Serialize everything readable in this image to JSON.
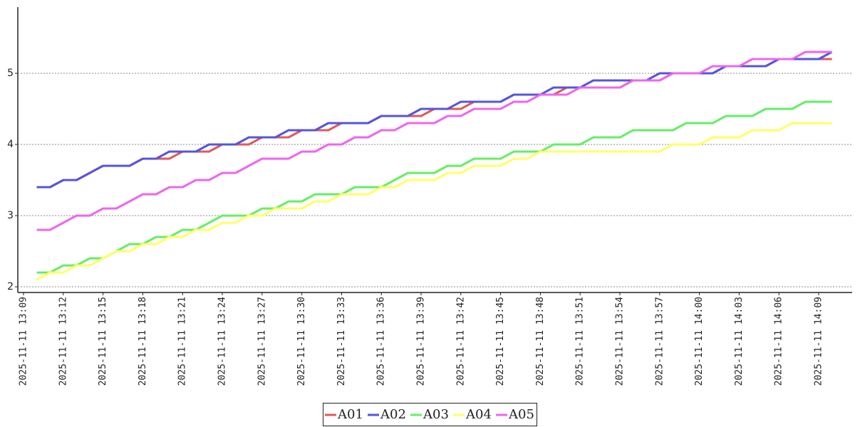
{
  "chart_data": {
    "type": "line",
    "categories": [
      "2025-11-11 13:09",
      null,
      null,
      "2025-11-11 13:12",
      null,
      null,
      "2025-11-11 13:15",
      null,
      null,
      "2025-11-11 13:18",
      null,
      null,
      "2025-11-11 13:21",
      null,
      null,
      "2025-11-11 13:24",
      null,
      null,
      "2025-11-11 13:27",
      null,
      null,
      "2025-11-11 13:30",
      null,
      null,
      "2025-11-11 13:33",
      null,
      null,
      "2025-11-11 13:36",
      null,
      null,
      "2025-11-11 13:39",
      null,
      null,
      "2025-11-11 13:42",
      null,
      null,
      "2025-11-11 13:45",
      null,
      null,
      "2025-11-11 13:48",
      null,
      null,
      "2025-11-11 13:51",
      null,
      null,
      "2025-11-11 13:54",
      null,
      null,
      "2025-11-11 13:57",
      null,
      null,
      "2025-11-11 14:00",
      null,
      null,
      "2025-11-11 14:03",
      null,
      null,
      "2025-11-11 14:06",
      null,
      null,
      "2025-11-11 14:09",
      null
    ],
    "series": [
      {
        "name": "A01",
        "color": "#e05a5a",
        "values": [
          null,
          3.4,
          3.4,
          3.5,
          3.5,
          3.6,
          3.7,
          3.7,
          3.7,
          3.8,
          3.8,
          3.8,
          3.9,
          3.9,
          3.9,
          4.0,
          4.0,
          4.0,
          4.1,
          4.1,
          4.1,
          4.2,
          4.2,
          4.2,
          4.3,
          4.3,
          4.3,
          4.4,
          4.4,
          4.4,
          4.4,
          4.5,
          4.5,
          4.5,
          4.6,
          4.6,
          4.6,
          4.7,
          4.7,
          4.7,
          4.7,
          4.8,
          4.8,
          4.8,
          4.8,
          4.8,
          4.9,
          4.9,
          4.9,
          5.0,
          5.0,
          5.0,
          5.0,
          5.1,
          5.1,
          5.1,
          5.1,
          5.2,
          5.2,
          5.2,
          5.2,
          5.2
        ]
      },
      {
        "name": "A02",
        "color": "#5555dd",
        "values": [
          null,
          3.4,
          3.4,
          3.5,
          3.5,
          3.6,
          3.7,
          3.7,
          3.7,
          3.8,
          3.8,
          3.9,
          3.9,
          3.9,
          4.0,
          4.0,
          4.0,
          4.1,
          4.1,
          4.1,
          4.2,
          4.2,
          4.2,
          4.3,
          4.3,
          4.3,
          4.3,
          4.4,
          4.4,
          4.4,
          4.5,
          4.5,
          4.5,
          4.6,
          4.6,
          4.6,
          4.6,
          4.7,
          4.7,
          4.7,
          4.8,
          4.8,
          4.8,
          4.9,
          4.9,
          4.9,
          4.9,
          4.9,
          5.0,
          5.0,
          5.0,
          5.0,
          5.0,
          5.1,
          5.1,
          5.1,
          5.1,
          5.2,
          5.2,
          5.2,
          5.2,
          5.3
        ]
      },
      {
        "name": "A03",
        "color": "#66ee66",
        "values": [
          null,
          2.2,
          2.2,
          2.3,
          2.3,
          2.4,
          2.4,
          2.5,
          2.6,
          2.6,
          2.7,
          2.7,
          2.8,
          2.8,
          2.9,
          3.0,
          3.0,
          3.0,
          3.1,
          3.1,
          3.2,
          3.2,
          3.3,
          3.3,
          3.3,
          3.4,
          3.4,
          3.4,
          3.5,
          3.6,
          3.6,
          3.6,
          3.7,
          3.7,
          3.8,
          3.8,
          3.8,
          3.9,
          3.9,
          3.9,
          4.0,
          4.0,
          4.0,
          4.1,
          4.1,
          4.1,
          4.2,
          4.2,
          4.2,
          4.2,
          4.3,
          4.3,
          4.3,
          4.4,
          4.4,
          4.4,
          4.5,
          4.5,
          4.5,
          4.6,
          4.6,
          4.6
        ]
      },
      {
        "name": "A04",
        "color": "#ffff66",
        "values": [
          null,
          2.1,
          2.2,
          2.2,
          2.3,
          2.3,
          2.4,
          2.5,
          2.5,
          2.6,
          2.6,
          2.7,
          2.7,
          2.8,
          2.8,
          2.9,
          2.9,
          3.0,
          3.0,
          3.1,
          3.1,
          3.1,
          3.2,
          3.2,
          3.3,
          3.3,
          3.3,
          3.4,
          3.4,
          3.5,
          3.5,
          3.5,
          3.6,
          3.6,
          3.7,
          3.7,
          3.7,
          3.8,
          3.8,
          3.9,
          3.9,
          3.9,
          3.9,
          3.9,
          3.9,
          3.9,
          3.9,
          3.9,
          3.9,
          4.0,
          4.0,
          4.0,
          4.1,
          4.1,
          4.1,
          4.2,
          4.2,
          4.2,
          4.3,
          4.3,
          4.3,
          4.3
        ]
      },
      {
        "name": "A05",
        "color": "#ee66ee",
        "values": [
          null,
          2.8,
          2.8,
          2.9,
          3.0,
          3.0,
          3.1,
          3.1,
          3.2,
          3.3,
          3.3,
          3.4,
          3.4,
          3.5,
          3.5,
          3.6,
          3.6,
          3.7,
          3.8,
          3.8,
          3.8,
          3.9,
          3.9,
          4.0,
          4.0,
          4.1,
          4.1,
          4.2,
          4.2,
          4.3,
          4.3,
          4.3,
          4.4,
          4.4,
          4.5,
          4.5,
          4.5,
          4.6,
          4.6,
          4.7,
          4.7,
          4.7,
          4.8,
          4.8,
          4.8,
          4.8,
          4.9,
          4.9,
          4.9,
          5.0,
          5.0,
          5.0,
          5.1,
          5.1,
          5.1,
          5.2,
          5.2,
          5.2,
          5.2,
          5.3,
          5.3,
          5.3
        ]
      }
    ],
    "ylim": [
      1.92,
      5.93
    ],
    "yticks": [
      2,
      3,
      4,
      5
    ],
    "grid": true,
    "legend": "bottom"
  }
}
